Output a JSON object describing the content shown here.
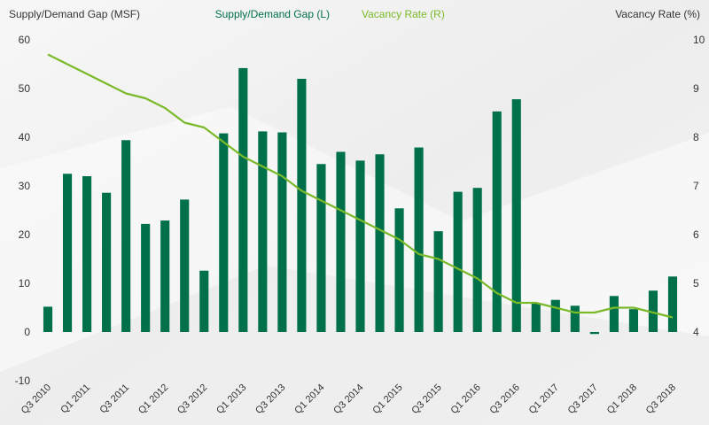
{
  "chart_data": {
    "type": "bar",
    "colors": {
      "bar": "#00704a",
      "line": "#7ab929",
      "text": "#333333"
    },
    "left_axis": {
      "title": "Supply/Demand Gap (MSF)",
      "range": [
        -10,
        60
      ],
      "ticks": [
        "-10",
        "0",
        "10",
        "20",
        "30",
        "40",
        "50",
        "60"
      ]
    },
    "right_axis": {
      "title": "Vacancy Rate (%)",
      "range": [
        3,
        10
      ],
      "ticks": [
        "4",
        "5",
        "6",
        "7",
        "8",
        "9",
        "10"
      ]
    },
    "legend": {
      "position": "top-center",
      "items": [
        "Supply/Demand Gap (L)",
        "Vacancy Rate (R)"
      ]
    },
    "x_tick_labels": [
      "Q3 2010",
      "Q1 2011",
      "Q3 2011",
      "Q1 2012",
      "Q3 2012",
      "Q1 2013",
      "Q3 2013",
      "Q1 2014",
      "Q3 2014",
      "Q1 2015",
      "Q3 2015",
      "Q1 2016",
      "Q3 2016",
      "Q1 2017",
      "Q3 2017",
      "Q1 2018",
      "Q3 2018"
    ],
    "categories": [
      "Q3 2010",
      "Q4 2010",
      "Q1 2011",
      "Q2 2011",
      "Q3 2011",
      "Q4 2011",
      "Q1 2012",
      "Q2 2012",
      "Q3 2012",
      "Q4 2012",
      "Q1 2013",
      "Q2 2013",
      "Q3 2013",
      "Q4 2013",
      "Q1 2014",
      "Q2 2014",
      "Q3 2014",
      "Q4 2014",
      "Q1 2015",
      "Q2 2015",
      "Q3 2015",
      "Q4 2015",
      "Q1 2016",
      "Q2 2016",
      "Q3 2016",
      "Q4 2016",
      "Q1 2017",
      "Q2 2017",
      "Q3 2017",
      "Q4 2017",
      "Q1 2018",
      "Q2 2018",
      "Q3 2018"
    ],
    "series": [
      {
        "name": "Supply/Demand Gap (L)",
        "type": "bar",
        "axis": "left",
        "values": [
          5.2,
          32.5,
          32.0,
          28.6,
          39.4,
          22.2,
          22.9,
          27.2,
          12.6,
          40.8,
          54.2,
          41.2,
          41.0,
          52.0,
          34.5,
          37.0,
          35.2,
          36.5,
          25.4,
          37.9,
          20.7,
          28.8,
          29.6,
          45.3,
          47.8,
          6.0,
          6.6,
          5.4,
          -0.4,
          7.4,
          4.7,
          8.5,
          11.4
        ]
      },
      {
        "name": "Vacancy Rate (R)",
        "type": "line",
        "axis": "right",
        "values": [
          9.7,
          9.5,
          9.3,
          9.1,
          8.9,
          8.8,
          8.6,
          8.3,
          8.2,
          7.9,
          7.6,
          7.4,
          7.2,
          6.9,
          6.7,
          6.5,
          6.3,
          6.1,
          5.9,
          5.6,
          5.5,
          5.3,
          5.1,
          4.8,
          4.6,
          4.6,
          4.5,
          4.4,
          4.4,
          4.5,
          4.5,
          4.4,
          4.3
        ]
      }
    ]
  }
}
